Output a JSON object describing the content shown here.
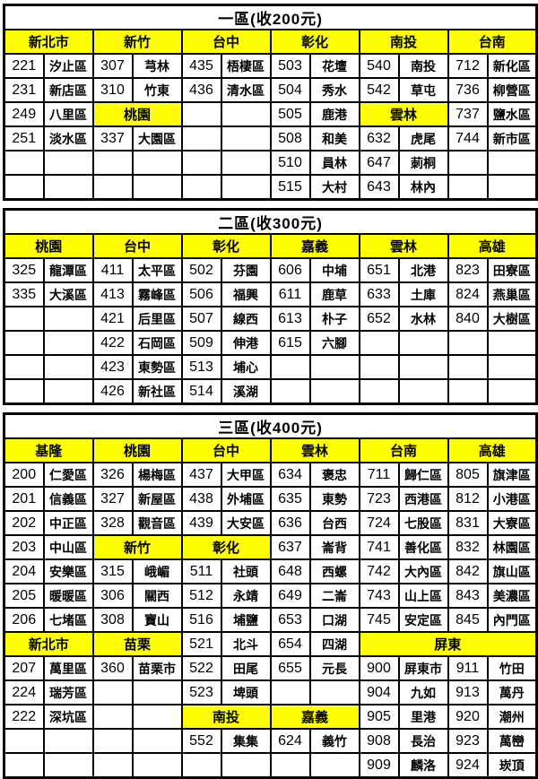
{
  "sections": [
    {
      "title": "一區(收200元)",
      "rows": [
        [
          {
            "c": "新北市",
            "h": 1,
            "s": 2
          },
          {
            "c": "新竹",
            "h": 1,
            "s": 2
          },
          {
            "c": "台中",
            "h": 1,
            "s": 2
          },
          {
            "c": "彰化",
            "h": 1,
            "s": 2
          },
          {
            "c": "南投",
            "h": 1,
            "s": 2
          },
          {
            "c": "台南",
            "h": 1,
            "s": 2
          }
        ],
        [
          {
            "c": "221"
          },
          {
            "c": "汐止區"
          },
          {
            "c": "307"
          },
          {
            "c": "芎林"
          },
          {
            "c": "435"
          },
          {
            "c": "梧棲區"
          },
          {
            "c": "503"
          },
          {
            "c": "花壇"
          },
          {
            "c": "540"
          },
          {
            "c": "南投"
          },
          {
            "c": "712"
          },
          {
            "c": "新化區"
          }
        ],
        [
          {
            "c": "231"
          },
          {
            "c": "新店區"
          },
          {
            "c": "310"
          },
          {
            "c": "竹東"
          },
          {
            "c": "436"
          },
          {
            "c": "清水區"
          },
          {
            "c": "504"
          },
          {
            "c": "秀水"
          },
          {
            "c": "542"
          },
          {
            "c": "草屯"
          },
          {
            "c": "736"
          },
          {
            "c": "柳營區"
          }
        ],
        [
          {
            "c": "249"
          },
          {
            "c": "八里區"
          },
          {
            "c": "桃園",
            "h": 1,
            "s": 2
          },
          {
            "c": ""
          },
          {
            "c": ""
          },
          {
            "c": "505"
          },
          {
            "c": "鹿港"
          },
          {
            "c": "雲林",
            "h": 1,
            "s": 2
          },
          {
            "c": "737"
          },
          {
            "c": "鹽水區"
          }
        ],
        [
          {
            "c": "251"
          },
          {
            "c": "淡水區"
          },
          {
            "c": "337"
          },
          {
            "c": "大園區"
          },
          {
            "c": ""
          },
          {
            "c": ""
          },
          {
            "c": "508"
          },
          {
            "c": "和美"
          },
          {
            "c": "632"
          },
          {
            "c": "虎尾"
          },
          {
            "c": "744"
          },
          {
            "c": "新市區"
          }
        ],
        [
          {
            "c": ""
          },
          {
            "c": ""
          },
          {
            "c": ""
          },
          {
            "c": ""
          },
          {
            "c": ""
          },
          {
            "c": ""
          },
          {
            "c": "510"
          },
          {
            "c": "員林"
          },
          {
            "c": "647"
          },
          {
            "c": "莿桐"
          },
          {
            "c": ""
          },
          {
            "c": ""
          }
        ],
        [
          {
            "c": ""
          },
          {
            "c": ""
          },
          {
            "c": ""
          },
          {
            "c": ""
          },
          {
            "c": ""
          },
          {
            "c": ""
          },
          {
            "c": "515"
          },
          {
            "c": "大村"
          },
          {
            "c": "643"
          },
          {
            "c": "林內"
          },
          {
            "c": ""
          },
          {
            "c": ""
          }
        ]
      ]
    },
    {
      "title": "二區(收300元)",
      "rows": [
        [
          {
            "c": "桃園",
            "h": 1,
            "s": 2
          },
          {
            "c": "台中",
            "h": 1,
            "s": 2
          },
          {
            "c": "彰化",
            "h": 1,
            "s": 2
          },
          {
            "c": "嘉義",
            "h": 1,
            "s": 2
          },
          {
            "c": "雲林",
            "h": 1,
            "s": 2
          },
          {
            "c": "高雄",
            "h": 1,
            "s": 2
          }
        ],
        [
          {
            "c": "325"
          },
          {
            "c": "龍潭區"
          },
          {
            "c": "411"
          },
          {
            "c": "太平區"
          },
          {
            "c": "502"
          },
          {
            "c": "芬園"
          },
          {
            "c": "606"
          },
          {
            "c": "中埔"
          },
          {
            "c": "651"
          },
          {
            "c": "北港"
          },
          {
            "c": "823"
          },
          {
            "c": "田寮區"
          }
        ],
        [
          {
            "c": "335"
          },
          {
            "c": "大溪區"
          },
          {
            "c": "413"
          },
          {
            "c": "霧峰區"
          },
          {
            "c": "506"
          },
          {
            "c": "福興"
          },
          {
            "c": "611"
          },
          {
            "c": "鹿草"
          },
          {
            "c": "633"
          },
          {
            "c": "土庫"
          },
          {
            "c": "824"
          },
          {
            "c": "燕巢區"
          }
        ],
        [
          {
            "c": ""
          },
          {
            "c": ""
          },
          {
            "c": "421"
          },
          {
            "c": "后里區"
          },
          {
            "c": "507"
          },
          {
            "c": "線西"
          },
          {
            "c": "613"
          },
          {
            "c": "朴子"
          },
          {
            "c": "652"
          },
          {
            "c": "水林"
          },
          {
            "c": "840"
          },
          {
            "c": "大樹區"
          }
        ],
        [
          {
            "c": ""
          },
          {
            "c": ""
          },
          {
            "c": "422"
          },
          {
            "c": "石岡區"
          },
          {
            "c": "509"
          },
          {
            "c": "伸港"
          },
          {
            "c": "615"
          },
          {
            "c": "六腳"
          },
          {
            "c": ""
          },
          {
            "c": ""
          },
          {
            "c": ""
          },
          {
            "c": ""
          }
        ],
        [
          {
            "c": ""
          },
          {
            "c": ""
          },
          {
            "c": "423"
          },
          {
            "c": "東勢區"
          },
          {
            "c": "513"
          },
          {
            "c": "埔心"
          },
          {
            "c": ""
          },
          {
            "c": ""
          },
          {
            "c": ""
          },
          {
            "c": ""
          },
          {
            "c": ""
          },
          {
            "c": ""
          }
        ],
        [
          {
            "c": ""
          },
          {
            "c": ""
          },
          {
            "c": "426"
          },
          {
            "c": "新社區"
          },
          {
            "c": "514"
          },
          {
            "c": "溪湖"
          },
          {
            "c": ""
          },
          {
            "c": ""
          },
          {
            "c": ""
          },
          {
            "c": ""
          },
          {
            "c": ""
          },
          {
            "c": ""
          }
        ]
      ]
    },
    {
      "title": "三區(收400元)",
      "rows": [
        [
          {
            "c": "基隆",
            "h": 1,
            "s": 2
          },
          {
            "c": "桃園",
            "h": 1,
            "s": 2
          },
          {
            "c": "台中",
            "h": 1,
            "s": 2
          },
          {
            "c": "雲林",
            "h": 1,
            "s": 2
          },
          {
            "c": "台南",
            "h": 1,
            "s": 2
          },
          {
            "c": "高雄",
            "h": 1,
            "s": 2
          }
        ],
        [
          {
            "c": "200"
          },
          {
            "c": "仁愛區"
          },
          {
            "c": "326"
          },
          {
            "c": "楊梅區"
          },
          {
            "c": "437"
          },
          {
            "c": "大甲區"
          },
          {
            "c": "634"
          },
          {
            "c": "褒忠"
          },
          {
            "c": "711"
          },
          {
            "c": "歸仁區"
          },
          {
            "c": "805"
          },
          {
            "c": "旗津區"
          }
        ],
        [
          {
            "c": "201"
          },
          {
            "c": "信義區"
          },
          {
            "c": "327"
          },
          {
            "c": "新屋區"
          },
          {
            "c": "438"
          },
          {
            "c": "外埔區"
          },
          {
            "c": "635"
          },
          {
            "c": "東勢"
          },
          {
            "c": "723"
          },
          {
            "c": "西港區"
          },
          {
            "c": "812"
          },
          {
            "c": "小港區"
          }
        ],
        [
          {
            "c": "202"
          },
          {
            "c": "中正區"
          },
          {
            "c": "328"
          },
          {
            "c": "觀音區"
          },
          {
            "c": "439"
          },
          {
            "c": "大安區"
          },
          {
            "c": "636"
          },
          {
            "c": "台西"
          },
          {
            "c": "724"
          },
          {
            "c": "七股區"
          },
          {
            "c": "831"
          },
          {
            "c": "大寮區"
          }
        ],
        [
          {
            "c": "203"
          },
          {
            "c": "中山區"
          },
          {
            "c": "新竹",
            "h": 1,
            "s": 2
          },
          {
            "c": "彰化",
            "h": 1,
            "s": 2
          },
          {
            "c": "637"
          },
          {
            "c": "崙背"
          },
          {
            "c": "741"
          },
          {
            "c": "善化區"
          },
          {
            "c": "832"
          },
          {
            "c": "林園區"
          }
        ],
        [
          {
            "c": "204"
          },
          {
            "c": "安樂區"
          },
          {
            "c": "315"
          },
          {
            "c": "峨嵋"
          },
          {
            "c": "511"
          },
          {
            "c": "社頭"
          },
          {
            "c": "648"
          },
          {
            "c": "西螺"
          },
          {
            "c": "742"
          },
          {
            "c": "大內區"
          },
          {
            "c": "842"
          },
          {
            "c": "旗山區"
          }
        ],
        [
          {
            "c": "205"
          },
          {
            "c": "暖暖區"
          },
          {
            "c": "306"
          },
          {
            "c": "關西"
          },
          {
            "c": "512"
          },
          {
            "c": "永靖"
          },
          {
            "c": "649"
          },
          {
            "c": "二崙"
          },
          {
            "c": "743"
          },
          {
            "c": "山上區"
          },
          {
            "c": "843"
          },
          {
            "c": "美濃區"
          }
        ],
        [
          {
            "c": "206"
          },
          {
            "c": "七堵區"
          },
          {
            "c": "308"
          },
          {
            "c": "寶山"
          },
          {
            "c": "516"
          },
          {
            "c": "埔鹽"
          },
          {
            "c": "653"
          },
          {
            "c": "口湖"
          },
          {
            "c": "745"
          },
          {
            "c": "安定區"
          },
          {
            "c": "845"
          },
          {
            "c": "內門區"
          }
        ],
        [
          {
            "c": "新北市",
            "h": 1,
            "s": 2
          },
          {
            "c": "苗栗",
            "h": 1,
            "s": 2
          },
          {
            "c": "521"
          },
          {
            "c": "北斗"
          },
          {
            "c": "654"
          },
          {
            "c": "四湖"
          },
          {
            "c": "屏東",
            "h": 1,
            "s": 4
          }
        ],
        [
          {
            "c": "207"
          },
          {
            "c": "萬里區"
          },
          {
            "c": "360"
          },
          {
            "c": "苗栗市"
          },
          {
            "c": "522"
          },
          {
            "c": "田尾"
          },
          {
            "c": "655"
          },
          {
            "c": "元長"
          },
          {
            "c": "900"
          },
          {
            "c": "屏東市"
          },
          {
            "c": "911"
          },
          {
            "c": "竹田"
          }
        ],
        [
          {
            "c": "224"
          },
          {
            "c": "瑞芳區"
          },
          {
            "c": ""
          },
          {
            "c": ""
          },
          {
            "c": "523"
          },
          {
            "c": "埤頭"
          },
          {
            "c": ""
          },
          {
            "c": ""
          },
          {
            "c": "904"
          },
          {
            "c": "九如"
          },
          {
            "c": "913"
          },
          {
            "c": "萬丹"
          }
        ],
        [
          {
            "c": "222"
          },
          {
            "c": "深坑區"
          },
          {
            "c": ""
          },
          {
            "c": ""
          },
          {
            "c": "南投",
            "h": 1,
            "s": 2
          },
          {
            "c": "嘉義",
            "h": 1,
            "s": 2
          },
          {
            "c": "905"
          },
          {
            "c": "里港"
          },
          {
            "c": "920"
          },
          {
            "c": "潮州"
          }
        ],
        [
          {
            "c": ""
          },
          {
            "c": ""
          },
          {
            "c": ""
          },
          {
            "c": ""
          },
          {
            "c": "552"
          },
          {
            "c": "集集"
          },
          {
            "c": "624"
          },
          {
            "c": "義竹"
          },
          {
            "c": "908"
          },
          {
            "c": "長治"
          },
          {
            "c": "923"
          },
          {
            "c": "萬巒"
          }
        ],
        [
          {
            "c": ""
          },
          {
            "c": ""
          },
          {
            "c": ""
          },
          {
            "c": ""
          },
          {
            "c": ""
          },
          {
            "c": ""
          },
          {
            "c": ""
          },
          {
            "c": ""
          },
          {
            "c": "909"
          },
          {
            "c": "麟洛"
          },
          {
            "c": "924"
          },
          {
            "c": "崁頂"
          }
        ]
      ]
    }
  ],
  "colors": {
    "header_bg": "#ffff00",
    "border": "#000000",
    "text": "#000000",
    "page_bg": "#ffffff"
  }
}
